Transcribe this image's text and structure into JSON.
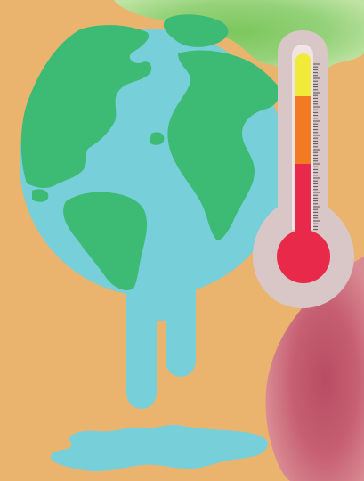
{
  "palette": {
    "background": "#eab46f",
    "ocean": "#77cfd9",
    "land": "#3dba74",
    "watercolor_green": "#88cc6a",
    "watercolor_red": "#c25a6c",
    "thermometer_case": "#d9c7c7",
    "thermometer_tube": "#f1e4e4",
    "mercury_red": "#e8294a",
    "mercury_orange": "#f27a22",
    "mercury_yellow": "#f0ea3a",
    "tick_marks": "#555555"
  },
  "illustration": {
    "subject": "melting-earth-icon",
    "thermometer": "thermometer-icon",
    "thermometer_level": 0.85,
    "thermometer_segments": [
      "yellow",
      "orange",
      "red"
    ]
  }
}
